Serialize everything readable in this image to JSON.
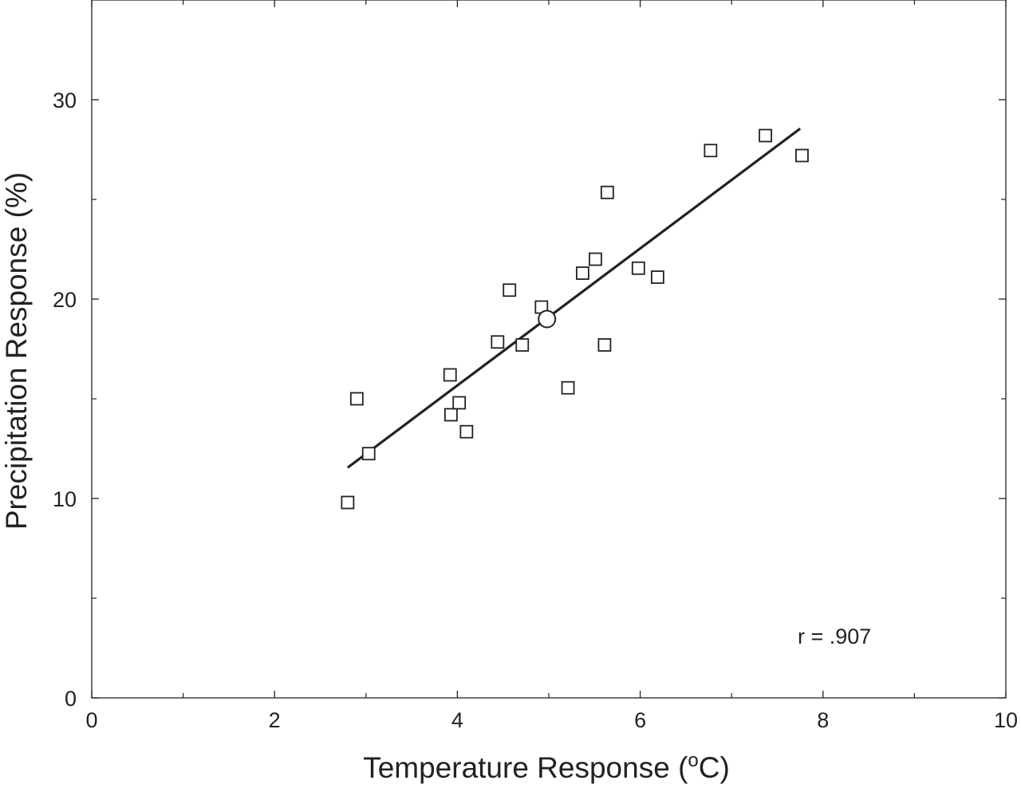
{
  "chart_data": {
    "type": "scatter",
    "xlabel": "Temperature Response (",
    "xlabel_sup": "o",
    "xlabel_tail": "C)",
    "ylabel": "Precipitation Response (%)",
    "xlim": [
      0,
      10
    ],
    "ylim": [
      0,
      35
    ],
    "x_ticks": [
      0,
      2,
      4,
      6,
      8,
      10
    ],
    "x_minor_ticks": [
      1,
      3,
      5,
      7,
      9
    ],
    "y_ticks": [
      0,
      10,
      20,
      30
    ],
    "y_minor_ticks": [
      5,
      15,
      25
    ],
    "grid": false,
    "marker_color": "#222222",
    "series": [
      {
        "marker": "square",
        "points": [
          {
            "x": 2.8,
            "y": 9.8
          },
          {
            "x": 2.9,
            "y": 15.0
          },
          {
            "x": 3.03,
            "y": 12.25
          },
          {
            "x": 3.92,
            "y": 16.2
          },
          {
            "x": 3.93,
            "y": 14.2
          },
          {
            "x": 4.02,
            "y": 14.8
          },
          {
            "x": 4.1,
            "y": 13.35
          },
          {
            "x": 4.44,
            "y": 17.85
          },
          {
            "x": 4.57,
            "y": 20.45
          },
          {
            "x": 4.71,
            "y": 17.7
          },
          {
            "x": 4.92,
            "y": 19.6
          },
          {
            "x": 5.21,
            "y": 15.55
          },
          {
            "x": 5.37,
            "y": 21.3
          },
          {
            "x": 5.51,
            "y": 22.0
          },
          {
            "x": 5.61,
            "y": 17.7
          },
          {
            "x": 5.64,
            "y": 25.35
          },
          {
            "x": 5.98,
            "y": 21.55
          },
          {
            "x": 6.19,
            "y": 21.1
          },
          {
            "x": 6.77,
            "y": 27.45
          },
          {
            "x": 7.37,
            "y": 28.2
          },
          {
            "x": 7.77,
            "y": 27.2
          }
        ]
      },
      {
        "marker": "circle",
        "points": [
          {
            "x": 4.98,
            "y": 19.0
          }
        ]
      }
    ],
    "fit_line": {
      "x": [
        2.8,
        7.75
      ],
      "y": [
        11.55,
        28.55
      ]
    },
    "annotation": "r = .907"
  }
}
